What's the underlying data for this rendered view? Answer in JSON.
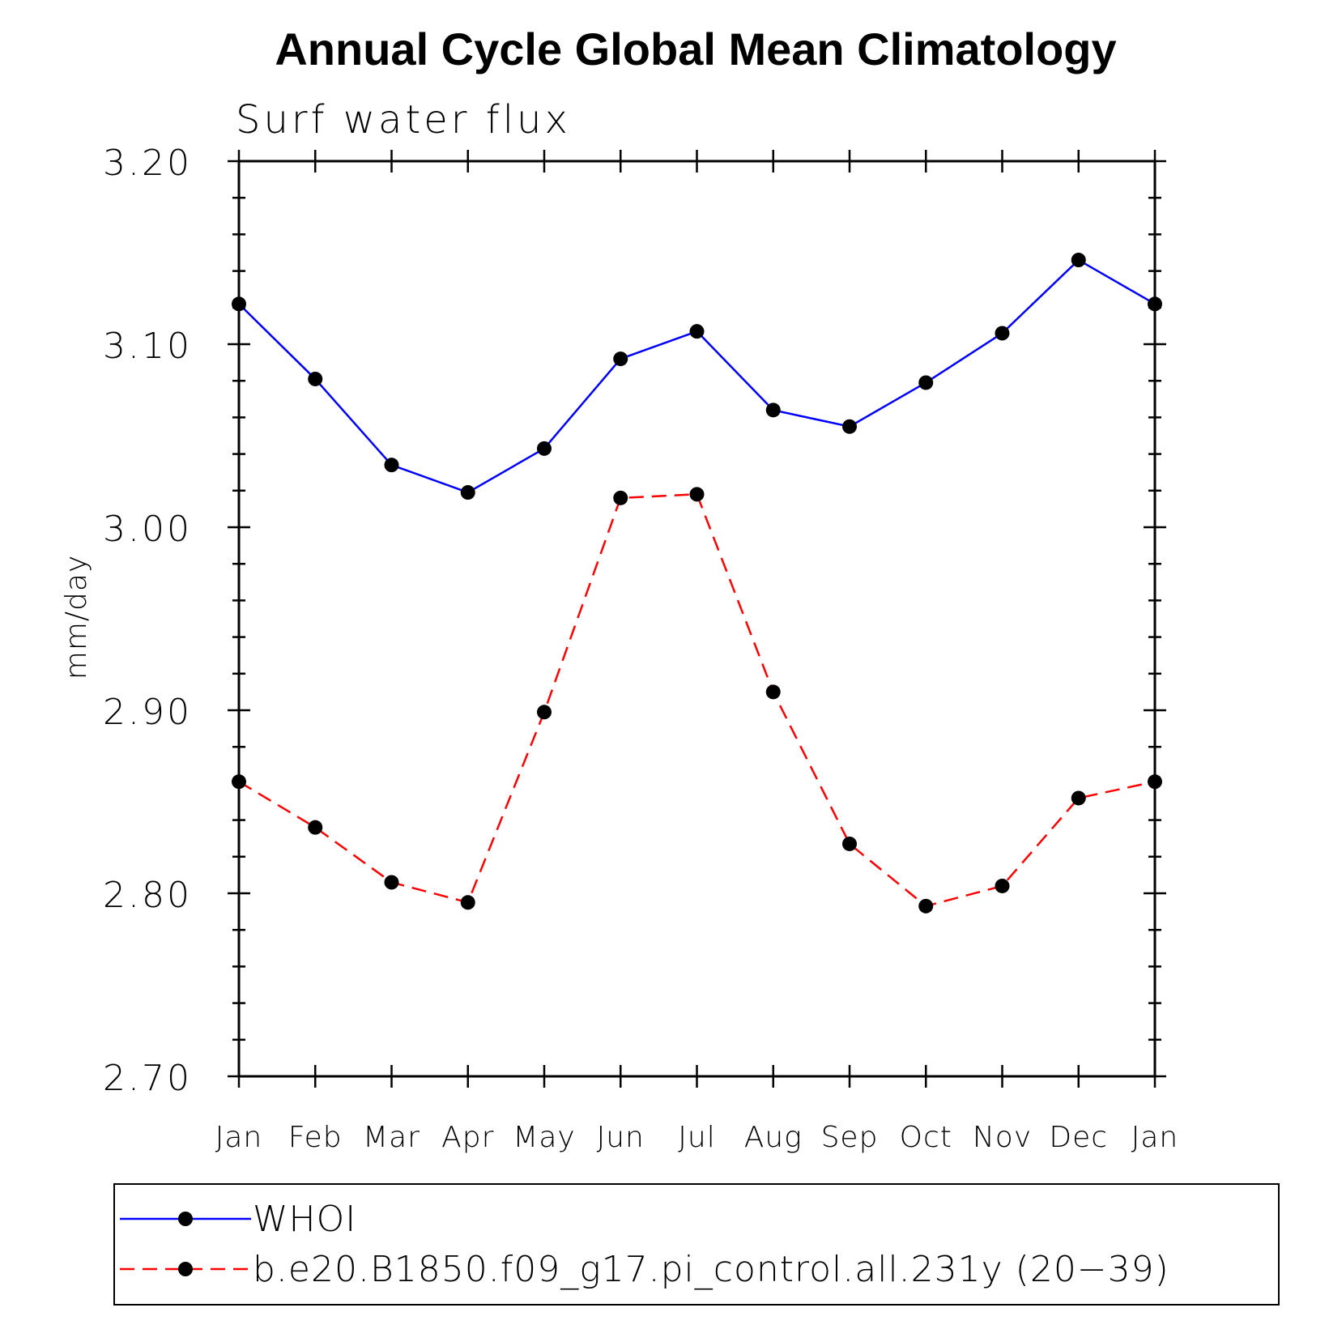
{
  "chart_data": {
    "type": "line",
    "title": "Annual Cycle Global Mean Climatology",
    "subtitle": "Surf water flux",
    "ylabel": "mm/day",
    "xlabel": "",
    "categories": [
      "Jan",
      "Feb",
      "Mar",
      "Apr",
      "May",
      "Jun",
      "Jul",
      "Aug",
      "Sep",
      "Oct",
      "Nov",
      "Dec",
      "Jan"
    ],
    "ylim": [
      2.7,
      3.2
    ],
    "yticks": [
      "2.70",
      "2.80",
      "2.90",
      "3.00",
      "3.10",
      "3.20"
    ],
    "grid": false,
    "legend_position": "bottom",
    "series": [
      {
        "name": "WHOI",
        "color": "#0000ff",
        "line_style": "solid",
        "marker": "filled-circle",
        "marker_color": "#000000",
        "values": [
          3.122,
          3.081,
          3.034,
          3.019,
          3.043,
          3.092,
          3.107,
          3.064,
          3.055,
          3.079,
          3.106,
          3.146,
          3.122
        ]
      },
      {
        "name": "b.e20.B1850.f09_g17.pi_control.all.231y (20−39)",
        "color": "#ff0000",
        "line_style": "dashed",
        "marker": "filled-circle",
        "marker_color": "#000000",
        "values": [
          2.861,
          2.836,
          2.806,
          2.795,
          2.899,
          3.016,
          3.018,
          2.91,
          2.827,
          2.793,
          2.804,
          2.852,
          2.861
        ]
      }
    ]
  }
}
